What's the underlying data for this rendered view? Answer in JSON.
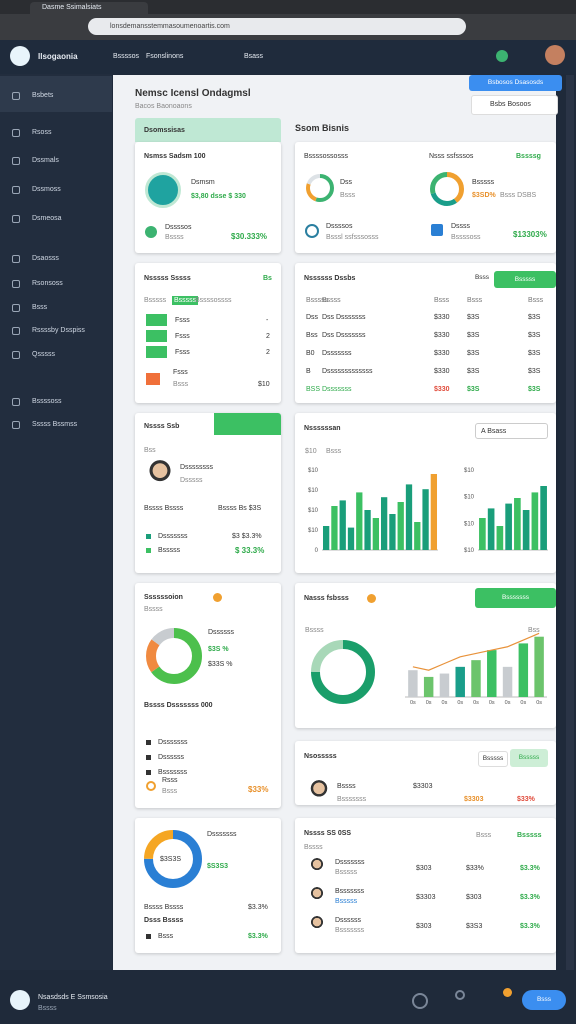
{
  "browser": {
    "tab": "Dasme Ssimalsiats",
    "url": "lonsdemansstemmasoumenoartis.com"
  },
  "header": {
    "brand": "Ilsogaonia",
    "nav": [
      "Bssssos",
      "Fsonslinons",
      "Bsass"
    ]
  },
  "sidebar": [
    "Bsbets",
    "Rsoss",
    "Dssmals",
    "Dssmoss",
    "Dsmeosa",
    "Dsaosss",
    "Rsonsoss",
    "Bsss",
    "Rssssby Dsspiss",
    "Qsssss",
    "Bssssoss",
    "Sssss Bssmss"
  ],
  "page": {
    "title": "Nemsc Icensl Ondagmsl",
    "subtitle": "Bacos Baonoaons",
    "action": "Bsbosos Dsasosds",
    "filter": "Bsbs Bosoos",
    "section": "Ssom Bisnis"
  },
  "summary": {
    "tab": "Dsomssisas",
    "title": "Nsmss Sadsm 100",
    "label": "Dsmsm",
    "detail": "$3,80 dsse $ 330",
    "foot_label": "Dssssos",
    "foot_sub": "Bssss",
    "foot_value": "$30.333%"
  },
  "stats": {
    "title": "Bssssossosss",
    "title2": "Nsss ssfsssos",
    "tag": "Bssssg",
    "g1_label": "Dss",
    "g1_sub": "Bsss",
    "g2_label": "Bsssss",
    "g2_value": "$3SD%",
    "g2_sub": "Bsss DSBS",
    "a_label": "Dssssos",
    "a_sub": "Bsssl ssfsssosss",
    "b_label": "Dssss",
    "b_sub": "Bssssoss",
    "b_value": "$13303%",
    "gauge1": {
      "values": [
        55,
        25,
        20
      ],
      "colors": [
        "#3cb371",
        "#f0a030",
        "#dde2e6"
      ]
    },
    "gauge2": {
      "values": [
        40,
        30,
        30
      ],
      "colors": [
        "#f0a030",
        "#1a9e8a",
        "#3cb371"
      ]
    }
  },
  "tasks": {
    "title": "Nsssss Sssss",
    "tag": "Bs",
    "sub": "Bsssss",
    "sub_tag": "Bsssss",
    "sub2": "Bssssossss",
    "rows": [
      [
        "Fsss",
        "-"
      ],
      [
        "Fsss",
        "2"
      ],
      [
        "Fsss",
        "2"
      ]
    ],
    "alert": "Fsss",
    "alert_sub": "Bsss",
    "alert_value": "$10"
  },
  "table": {
    "title": "Nssssss Dssbs",
    "btn1": "Bsss",
    "btn2": "Bsssss",
    "head": [
      "Bsssss",
      "Bssss",
      "Bsss",
      "Bsss",
      "Bsss"
    ],
    "rows": [
      [
        "Dss",
        "Dss Dsssssss",
        "$330",
        "$3S",
        "$3S"
      ],
      [
        "Bss",
        "Dss Dsssssss",
        "$330",
        "$3S",
        "$3S"
      ],
      [
        "B0",
        "Dsssssss",
        "$330",
        "$3S",
        "$3S"
      ],
      [
        "B",
        "Dsssssssssssss",
        "$330",
        "$3S",
        "$3S"
      ],
      [
        "BSS",
        "Dsssssss",
        "$330",
        "$3S",
        "$3S"
      ]
    ]
  },
  "profile": {
    "title": "Nssss Ssb",
    "sub": "Bss",
    "name": "Dssssssss",
    "role": "Dsssss",
    "line_a": "Bssss Bssss",
    "line_b": "Bssss Bs $3S",
    "r1": "Dsssssss",
    "r1_value": "$3 $3.3%",
    "r2": "Bsssss",
    "r2_value": "$ 33.3%"
  },
  "traffic": {
    "title": "Nssssssan",
    "dropdown": "A Bsass",
    "legend": [
      "$10",
      "Bsss"
    ],
    "y_labels": [
      "$10",
      "$10",
      "$10",
      "$10",
      "0"
    ],
    "y2_labels": [
      "$10",
      "$10",
      "$10",
      "$10"
    ],
    "ylim": [
      0,
      100
    ],
    "values": [
      30,
      55,
      62,
      28,
      72,
      50,
      40,
      66,
      45,
      60,
      82,
      35,
      76,
      95
    ],
    "colors": [
      "#1a9e7a",
      "#3cc063",
      "#1a9e7a",
      "#1a9e7a",
      "#3cc063",
      "#1a9e7a",
      "#3cc063",
      "#1a9e7a",
      "#1a9e7a",
      "#3cc063",
      "#1a9e7a",
      "#3cc063",
      "#1a9e7a",
      "#f0a030"
    ],
    "values2": [
      40,
      52,
      30,
      58,
      65,
      50,
      72,
      80
    ],
    "colors2": [
      "#3cc063",
      "#1a9e7a",
      "#3cc063",
      "#1a9e7a",
      "#3cc063",
      "#1a9e7a",
      "#3cc063",
      "#1a9e7a"
    ]
  },
  "sessions": {
    "title": "Ssssssoion",
    "sub": "Bssss",
    "label": "Dssssss",
    "v1": "$3S %",
    "v2": "$33S %",
    "list_title": "Bssss Dsssssss 000",
    "items": [
      "Dsssssss",
      "Dssssss",
      "Bsssssss"
    ],
    "foot_label": "Rsss",
    "foot_sub": "Bsss",
    "foot_value": "$33%",
    "donut": {
      "values": [
        65,
        20,
        15
      ],
      "colors": [
        "#4cc04c",
        "#f08a40",
        "#c8ccd0"
      ]
    }
  },
  "revenue": {
    "title": "Nasss fsbsss",
    "btn": "Bsssssss",
    "axis_label": "Bssss",
    "tag": "Bss",
    "ylim": [
      0,
      100
    ],
    "bars": [
      40,
      30,
      35,
      45,
      55,
      70,
      45,
      80,
      90
    ],
    "bar_colors": [
      "#c8ccd0",
      "#6cc46c",
      "#c8ccd0",
      "#1a9e8a",
      "#6cc46c",
      "#3cc063",
      "#c8ccd0",
      "#3cc063",
      "#6cc46c"
    ],
    "line": [
      45,
      40,
      50,
      60,
      65,
      70,
      75,
      85,
      95
    ],
    "line_color": "#e8923a",
    "x_labels": [
      "0s",
      "0s",
      "0s",
      "0s",
      "0s",
      "0s",
      "0s",
      "0s",
      "0s"
    ],
    "donut": {
      "values": [
        75,
        25
      ],
      "colors": [
        "#1a9e6a",
        "#a8d8b8"
      ]
    }
  },
  "team": {
    "title": "Nsosssss",
    "btn1": "Bsssss",
    "btn2": "Bsssss",
    "name": "Bssss",
    "role": "Bsssssss",
    "values": [
      "$3303",
      "$3303",
      "$33%"
    ]
  },
  "wallet": {
    "title": "Dsssssss",
    "v1": "$3S3S",
    "v2": "$S3S3",
    "r1": "Bssss Bssss",
    "r1_value": "$3.3%",
    "r2": "Dsss Bssss",
    "r3": "Bsss",
    "r3_value": "$3.3%",
    "donut": {
      "values": [
        75,
        25
      ],
      "colors": [
        "#2a7fd4",
        "#f5a623"
      ]
    }
  },
  "leaders": {
    "title": "Nssss SS 0SS",
    "btn1": "Bsss",
    "btn2": "Bsssss",
    "sub": "Bssss",
    "rows": [
      {
        "name": "Dsssssss",
        "sub": "Bsssss",
        "values": [
          "$303",
          "$33%",
          "$3.3%"
        ]
      },
      {
        "name": "Bsssssss",
        "sub": "Bsssss",
        "values": [
          "$3303",
          "$303",
          "$3.3%"
        ]
      },
      {
        "name": "Dssssss",
        "sub": "Bsssssss",
        "values": [
          "$303",
          "$3S3",
          "$3.3%"
        ]
      }
    ]
  },
  "footer": {
    "title": "Nsasdsds E Ssmsosia",
    "sub": "Bssss",
    "btn": "Bsss"
  }
}
